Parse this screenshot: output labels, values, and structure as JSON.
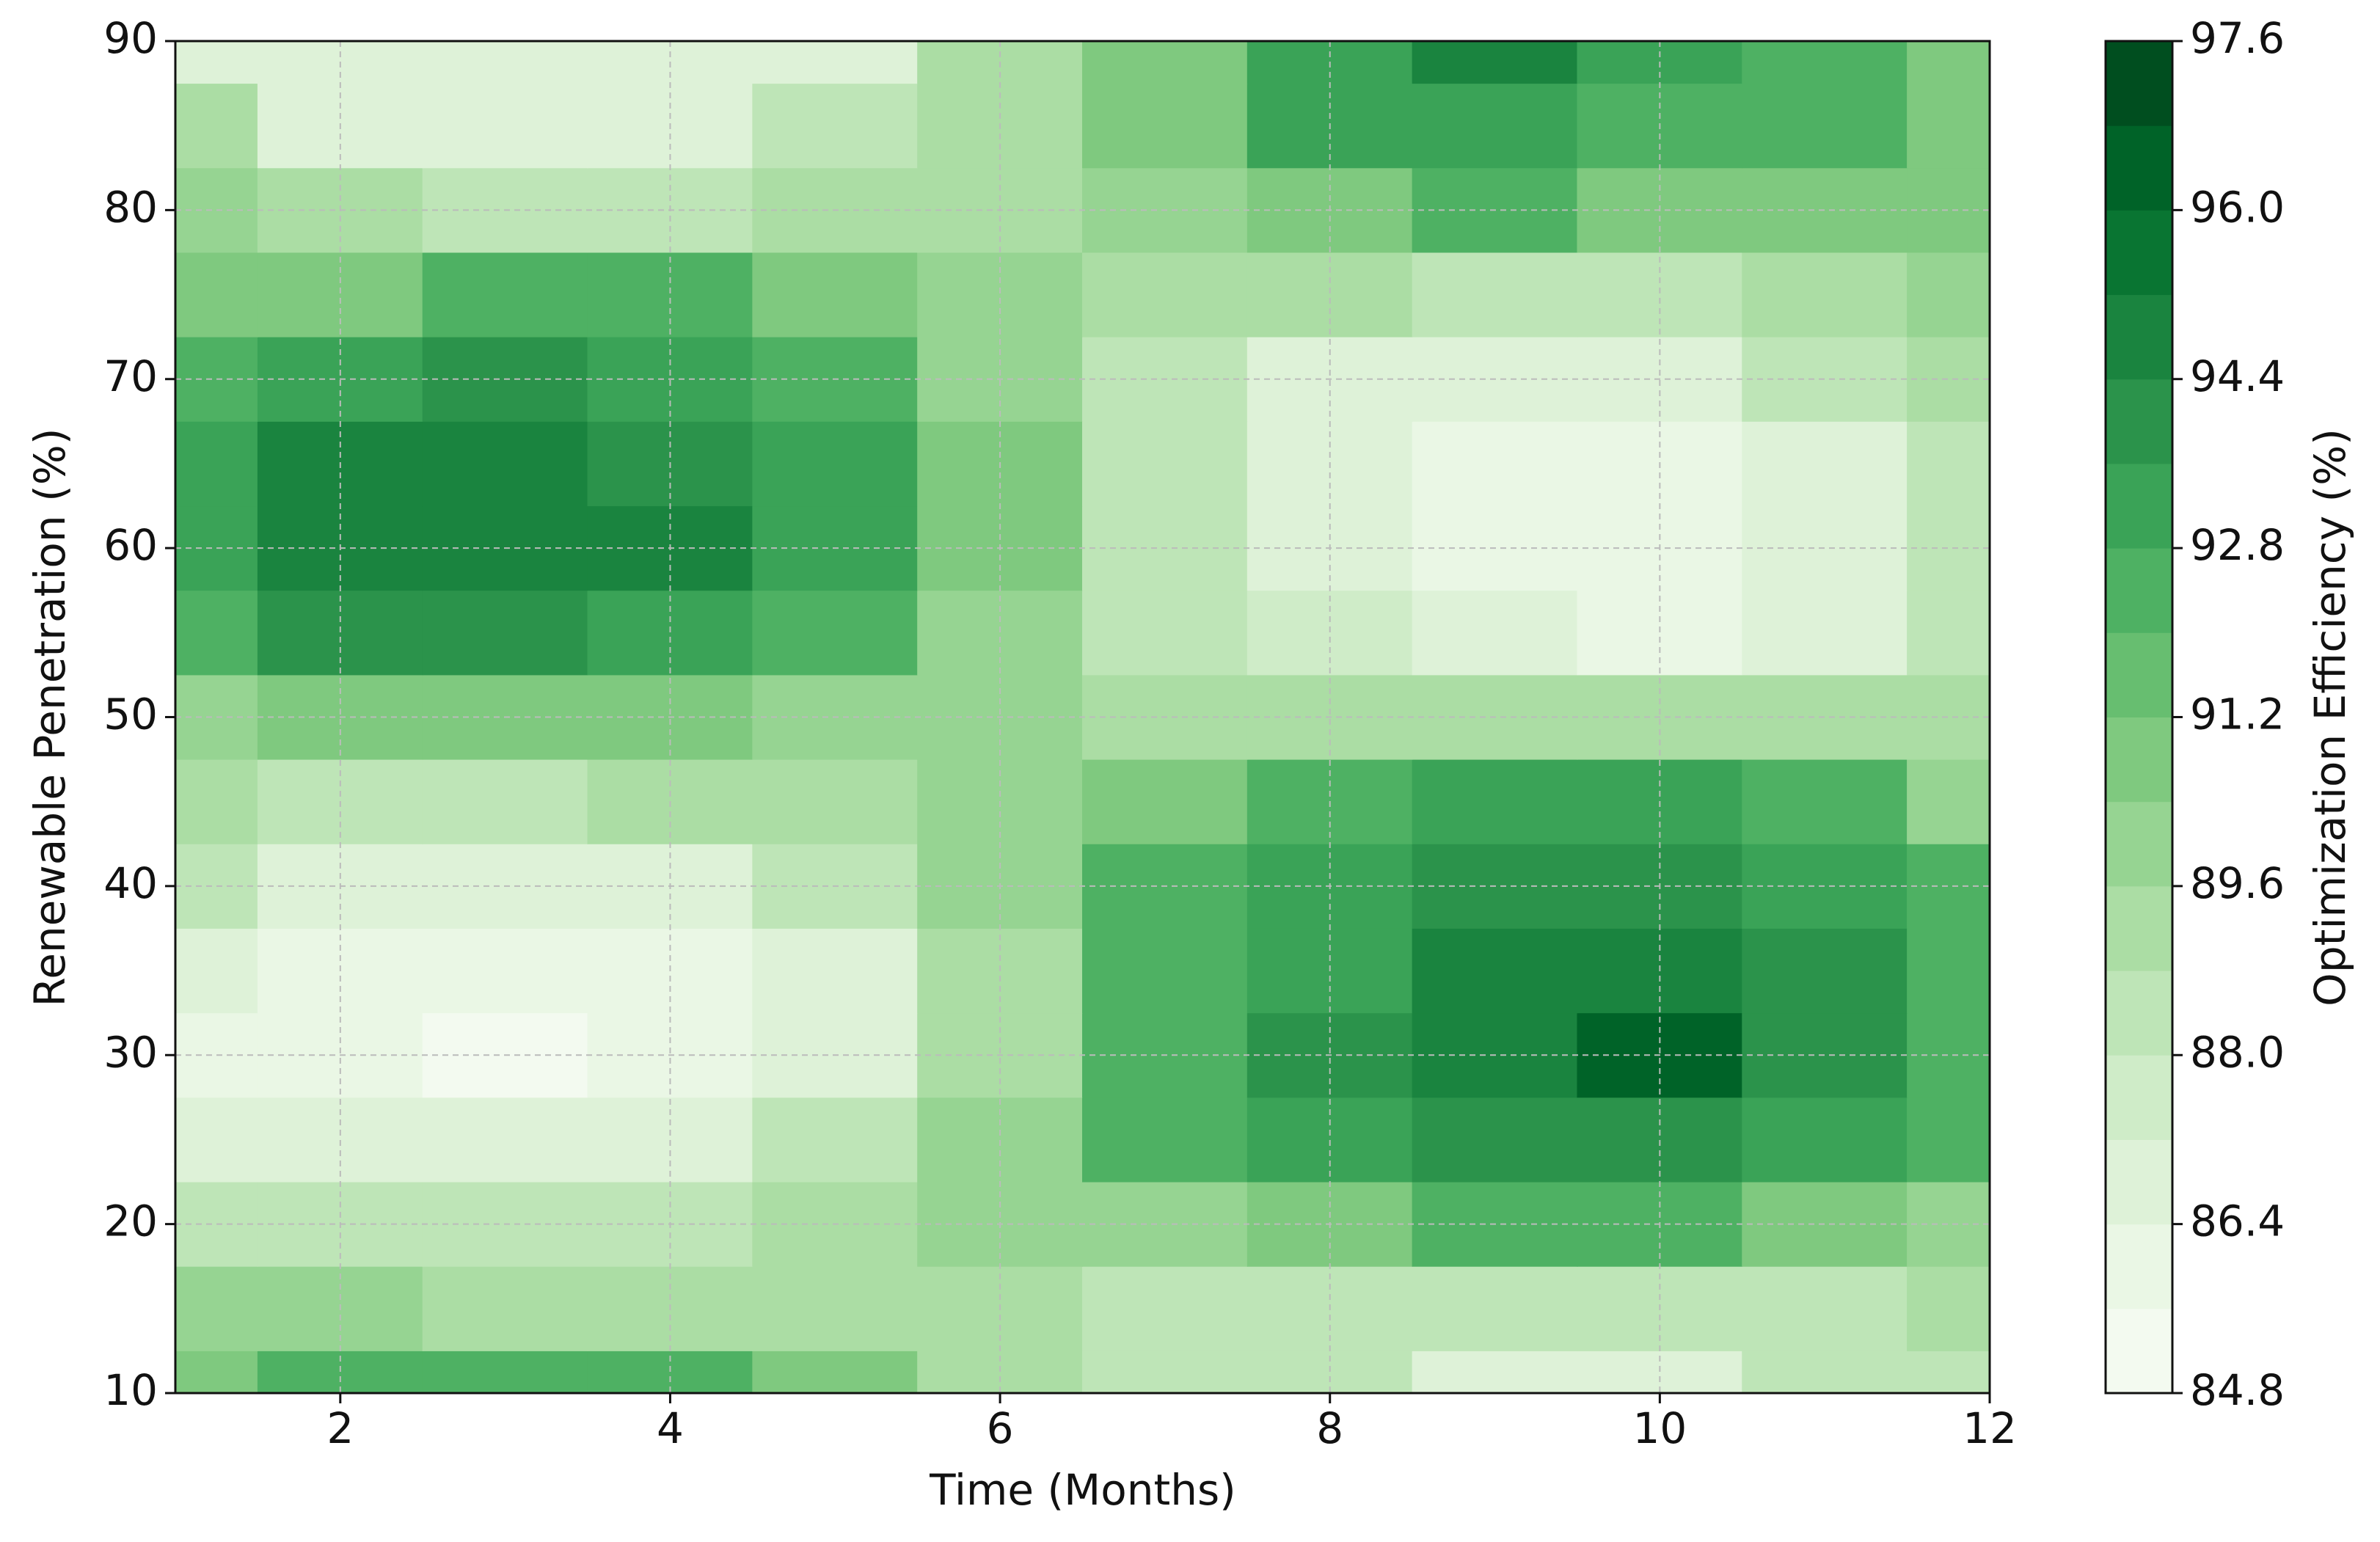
{
  "chart_data": {
    "type": "contour",
    "xlabel": "Time (Months)",
    "ylabel": "Renewable Penetration (%)",
    "colorbar_label": "Optimization Efficiency (%)",
    "x": [
      1,
      2,
      3,
      4,
      5,
      6,
      7,
      8,
      9,
      10,
      11,
      12
    ],
    "y": [
      10,
      15,
      20,
      25,
      30,
      35,
      40,
      45,
      50,
      55,
      60,
      65,
      70,
      75,
      80,
      85,
      90
    ],
    "z": [
      [
        91,
        92,
        92,
        92,
        91,
        89,
        88,
        88,
        87,
        87,
        88,
        88
      ],
      [
        90,
        90,
        89,
        89,
        89,
        89,
        88,
        88,
        88,
        88,
        88,
        89
      ],
      [
        88,
        88,
        88,
        88,
        89,
        90,
        90,
        91,
        92,
        92,
        91,
        90
      ],
      [
        87,
        86.5,
        86.5,
        87,
        88,
        90,
        92,
        93,
        94,
        94,
        93,
        92
      ],
      [
        86,
        86,
        85.5,
        86,
        87,
        89,
        92,
        94,
        95,
        96,
        94,
        92
      ],
      [
        87,
        86,
        86,
        86,
        87,
        89,
        92,
        93,
        95,
        95,
        94,
        92
      ],
      [
        88,
        87,
        86.5,
        86.5,
        88,
        90,
        92,
        93,
        94,
        94,
        93,
        92
      ],
      [
        89,
        88,
        88,
        89,
        89,
        90,
        91,
        92,
        93,
        93,
        92,
        90
      ],
      [
        90,
        91,
        91,
        91,
        90,
        90,
        89,
        89,
        89,
        89,
        89,
        89
      ],
      [
        92,
        94,
        94,
        93,
        92,
        90,
        88,
        87.5,
        87,
        86,
        87,
        88
      ],
      [
        93,
        95,
        95,
        95,
        93,
        91,
        88,
        87,
        86,
        86,
        87,
        88
      ],
      [
        93,
        95,
        95,
        94,
        93,
        91,
        88,
        86.5,
        86,
        86,
        87,
        88
      ],
      [
        92,
        93,
        94,
        93,
        92,
        90,
        88,
        87,
        87,
        87,
        88,
        89
      ],
      [
        91,
        91,
        92,
        92,
        91,
        90,
        89,
        89,
        88,
        88,
        89,
        90
      ],
      [
        90,
        89,
        88,
        88,
        89,
        89,
        90,
        91,
        92,
        91,
        91,
        91
      ],
      [
        89,
        87,
        86.5,
        87,
        88,
        89,
        91,
        93,
        93,
        92,
        92,
        91
      ],
      [
        87,
        87,
        87,
        87,
        87,
        89,
        91,
        93,
        95,
        93,
        92,
        91
      ]
    ],
    "xlim": [
      1,
      12
    ],
    "xticks": [
      2,
      4,
      6,
      8,
      10,
      12
    ],
    "ylim": [
      10,
      90
    ],
    "yticks": [
      10,
      20,
      30,
      40,
      50,
      60,
      70,
      80,
      90
    ],
    "grid": true,
    "clim": [
      84.8,
      97.6
    ],
    "levels": 16,
    "cticks": [
      84.8,
      86.4,
      {
        "value": 88,
        "label": "88.0"
      },
      89.6,
      91.2,
      92.8,
      94.4,
      {
        "value": 96,
        "label": "96.0"
      },
      97.6
    ],
    "colormap": [
      "#f7fcf5",
      "#e5f5e0",
      "#c7e9c0",
      "#a1d99b",
      "#74c476",
      "#41ab5d",
      "#238b45",
      "#006d2c",
      "#00441b"
    ]
  }
}
